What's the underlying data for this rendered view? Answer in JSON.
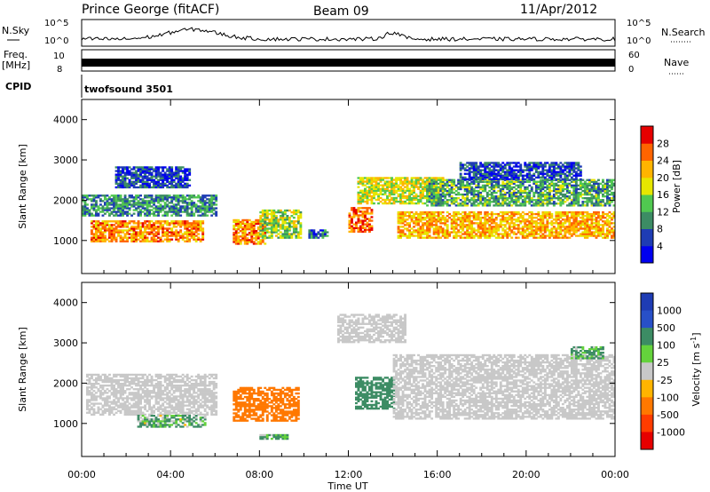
{
  "header": {
    "station": "Prince George (fitACF)",
    "beam": "Beam 09",
    "date": "11/Apr/2012"
  },
  "top_panels": {
    "nsky_label": "N.Sky",
    "nsky_tick_hi": "10^5",
    "nsky_tick_lo": "10^0",
    "nsearch_label": "N.Search",
    "nsearch_tick_hi": "10^5",
    "nsearch_tick_lo": "10^0",
    "freq_label": "Freq.",
    "freq_unit": "[MHz]",
    "freq_tick_hi": "10",
    "freq_tick_lo": "8",
    "nave_label": "Nave",
    "nave_tick_hi": "60",
    "nave_tick_lo": "0",
    "cpid_label": "CPID",
    "cpid_value": "twofsound 3501"
  },
  "axes": {
    "ylabel": "Slant Range [km]",
    "xlabel": "Time UT",
    "yticks": [
      "1000",
      "2000",
      "3000",
      "4000"
    ],
    "xticks": [
      "00:00",
      "04:00",
      "08:00",
      "12:00",
      "16:00",
      "20:00",
      "00:00"
    ]
  },
  "power_bar": {
    "label": "Power [dB]",
    "ticks": [
      "4",
      "8",
      "12",
      "16",
      "20",
      "24",
      "28"
    ],
    "colors": [
      "#0000f0",
      "#1e3cb4",
      "#3c8c64",
      "#50c850",
      "#e6e600",
      "#ffb400",
      "#ff6400",
      "#e60000"
    ]
  },
  "velocity_bar": {
    "label": "Velocity [m s",
    "label_sup": "-1",
    "label_end": "]",
    "ticks": [
      "1000",
      "500",
      "100",
      "25",
      "-25",
      "-100",
      "-500",
      "-1000"
    ],
    "colors": [
      "#1e3cb4",
      "#2850c8",
      "#3c8c64",
      "#64d23c",
      "#c8c8c8",
      "#ffb400",
      "#ff7800",
      "#ff3c00",
      "#e60000"
    ]
  },
  "chart_data": [
    {
      "type": "heatmap",
      "title": "Power",
      "x_unit": "hours UT",
      "y_unit": "km",
      "xlim": [
        0,
        24
      ],
      "ylim": [
        180,
        4500
      ],
      "clim": [
        0,
        32
      ],
      "blobs": [
        {
          "t0": 0.4,
          "t1": 5.4,
          "r0": 960,
          "r1": 1500,
          "v": 24
        },
        {
          "t0": 0.0,
          "t1": 6.0,
          "r0": 1600,
          "r1": 2100,
          "v": 10
        },
        {
          "t0": 1.5,
          "t1": 4.8,
          "r0": 2300,
          "r1": 2800,
          "v": 6
        },
        {
          "t0": 6.8,
          "t1": 8.2,
          "r0": 900,
          "r1": 1500,
          "v": 24
        },
        {
          "t0": 8.0,
          "t1": 9.8,
          "r0": 1050,
          "r1": 1750,
          "v": 16
        },
        {
          "t0": 10.2,
          "t1": 11.0,
          "r0": 1050,
          "r1": 1250,
          "v": 8
        },
        {
          "t0": 12.0,
          "t1": 13.0,
          "r0": 1200,
          "r1": 1800,
          "v": 26
        },
        {
          "t0": 12.4,
          "t1": 16.2,
          "r0": 1900,
          "r1": 2550,
          "v": 18
        },
        {
          "t0": 14.2,
          "t1": 24.0,
          "r0": 1050,
          "r1": 1700,
          "v": 22
        },
        {
          "t0": 15.5,
          "t1": 24.0,
          "r0": 1850,
          "r1": 2500,
          "v": 12
        },
        {
          "t0": 17.0,
          "t1": 22.5,
          "r0": 2500,
          "r1": 2950,
          "v": 6
        }
      ]
    },
    {
      "type": "heatmap",
      "title": "Velocity",
      "x_unit": "hours UT",
      "y_unit": "km",
      "xlim": [
        0,
        24
      ],
      "ylim": [
        180,
        4500
      ],
      "clim": [
        -1000,
        1000
      ],
      "blobs": [
        {
          "t0": 0.2,
          "t1": 6.0,
          "r0": 1200,
          "r1": 2200,
          "v": 0
        },
        {
          "t0": 2.5,
          "t1": 5.5,
          "r0": 900,
          "r1": 1200,
          "v": 120
        },
        {
          "t0": 6.8,
          "t1": 9.7,
          "r0": 1050,
          "r1": 1900,
          "v": -250
        },
        {
          "t0": 8.0,
          "t1": 9.2,
          "r0": 600,
          "r1": 720,
          "v": 120
        },
        {
          "t0": 12.3,
          "t1": 14.0,
          "r0": 1350,
          "r1": 2150,
          "v": 300
        },
        {
          "t0": 14.0,
          "t1": 24.0,
          "r0": 1100,
          "r1": 2700,
          "v": 0
        },
        {
          "t0": 11.5,
          "t1": 14.5,
          "r0": 3000,
          "r1": 3700,
          "v": 0
        },
        {
          "t0": 22.0,
          "t1": 23.5,
          "r0": 2600,
          "r1": 2900,
          "v": 150
        }
      ]
    }
  ]
}
